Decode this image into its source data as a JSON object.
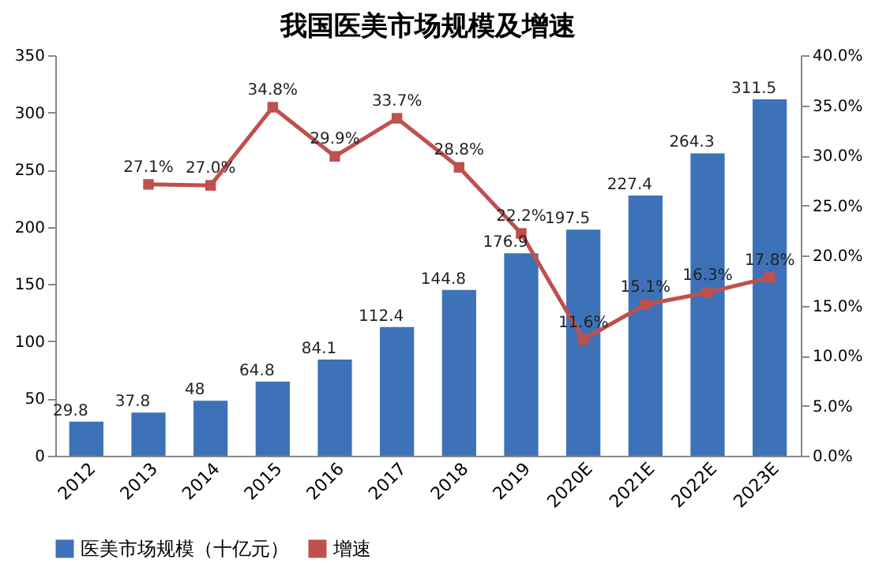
{
  "chart_data": {
    "type": "bar",
    "title": "我国医美市场规模及增速",
    "categories": [
      "2012",
      "2013",
      "2014",
      "2015",
      "2016",
      "2017",
      "2018",
      "2019",
      "2020E",
      "2021E",
      "2022E",
      "2023E"
    ],
    "series": [
      {
        "name": "医美市场规模（十亿元）",
        "type": "bar",
        "color": "#3d72b8",
        "values": [
          29.8,
          37.8,
          48,
          64.8,
          84.1,
          112.4,
          144.8,
          176.9,
          197.5,
          227.4,
          264.3,
          311.5
        ]
      },
      {
        "name": "增速",
        "type": "line",
        "axis": "y2",
        "color": "#c0504d",
        "marker": "square",
        "values": [
          null,
          27.1,
          27.0,
          34.8,
          29.9,
          33.7,
          28.8,
          22.2,
          11.6,
          15.1,
          16.3,
          17.8
        ],
        "value_labels": [
          null,
          "27.1%",
          "27.0%",
          "34.8%",
          "29.9%",
          "33.7%",
          "28.8%",
          "22.2%",
          "11.6%",
          "15.1%",
          "16.3%",
          "17.8%"
        ]
      }
    ],
    "ylim": [
      0,
      350
    ],
    "yticks": [
      0,
      50,
      100,
      150,
      200,
      250,
      300,
      350
    ],
    "y2lim": [
      0,
      40
    ],
    "y2ticks": [
      {
        "value": 0,
        "label": "0.0%"
      },
      {
        "value": 5,
        "label": "5.0%"
      },
      {
        "value": 10,
        "label": "10.0%"
      },
      {
        "value": 15,
        "label": "15.0%"
      },
      {
        "value": 20,
        "label": "20.0%"
      },
      {
        "value": 25,
        "label": "25.0%"
      },
      {
        "value": 30,
        "label": "30.0%"
      },
      {
        "value": 35,
        "label": "35.0%"
      },
      {
        "value": 40,
        "label": "40.0%"
      }
    ],
    "data_labels": true,
    "legend": "bottom",
    "grid": false
  }
}
